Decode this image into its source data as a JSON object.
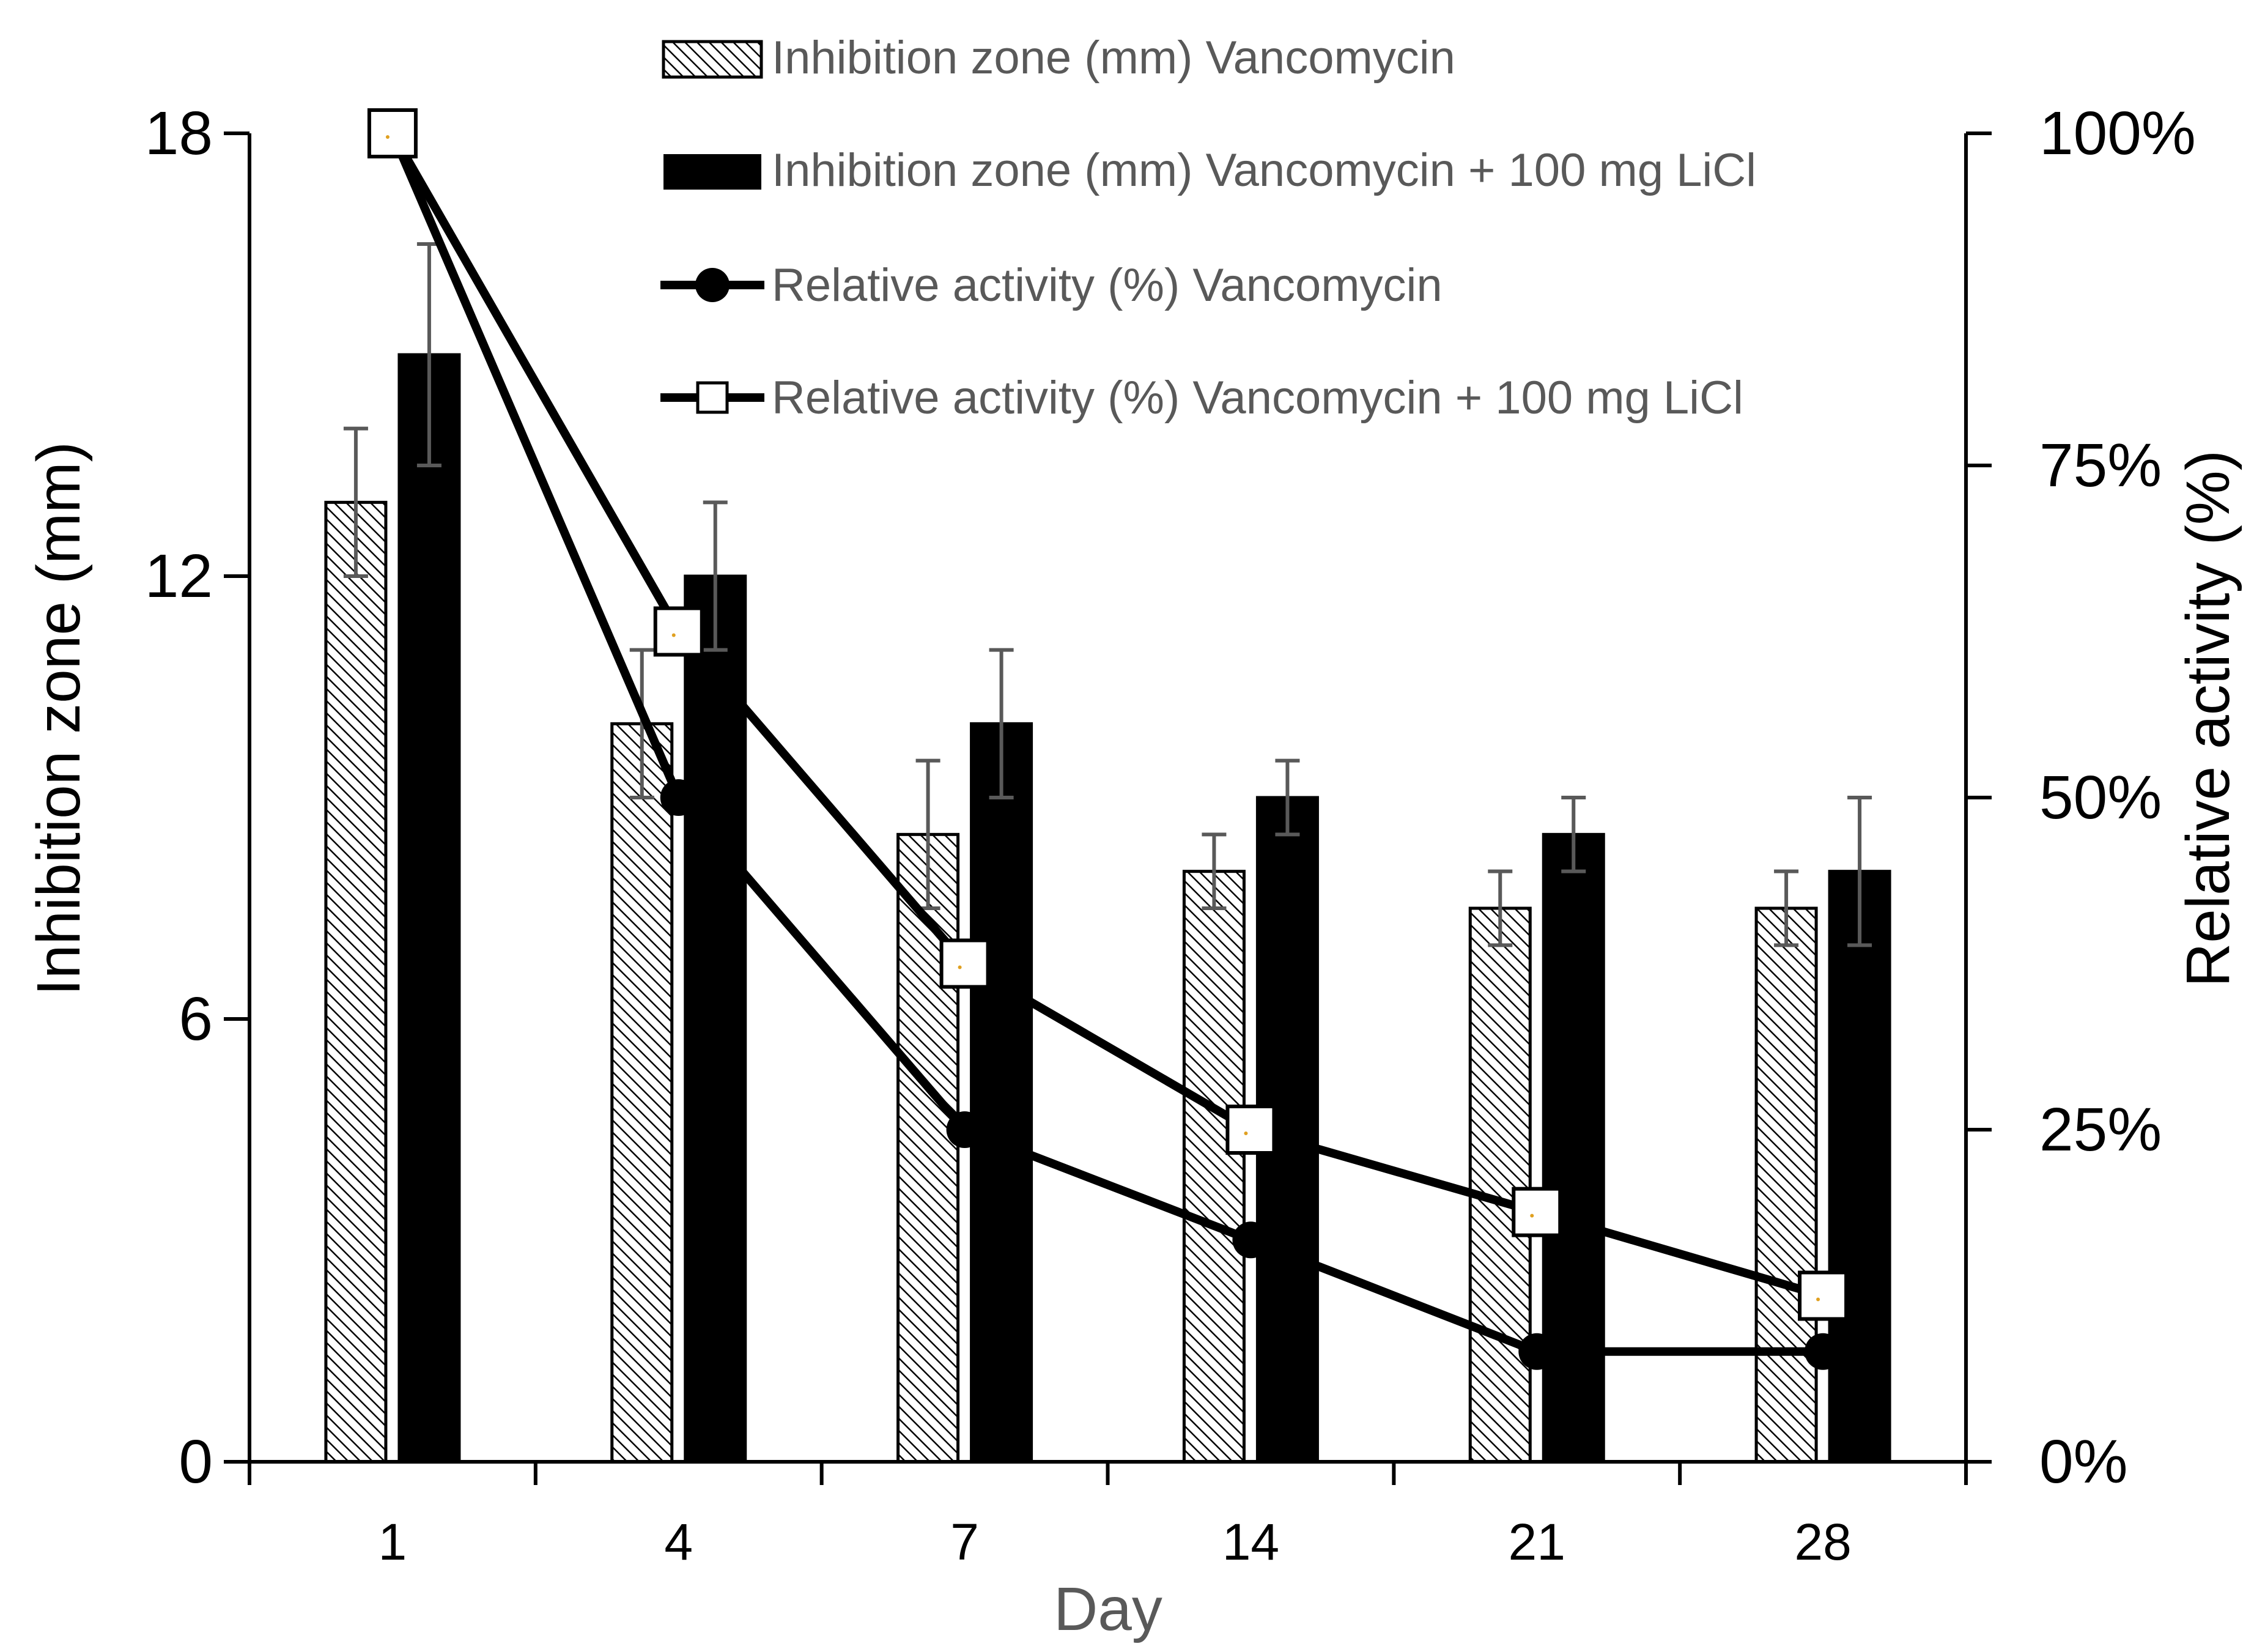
{
  "chart_data": {
    "type": "bar",
    "categories": [
      "1",
      "4",
      "7",
      "14",
      "21",
      "28"
    ],
    "xlabel": "Day",
    "ylabel": "Inhibition zone (mm)",
    "y2label": "Relative activity (%)",
    "ylim": [
      0,
      18
    ],
    "yticks": [
      "0",
      "6",
      "12",
      "18"
    ],
    "y2lim": [
      0,
      100
    ],
    "y2ticks": [
      "0%",
      "25%",
      "50%",
      "75%",
      "100%"
    ],
    "legend_position": "top",
    "bar_series": [
      {
        "name": "Inhibition zone (mm) Vancomycin",
        "values": [
          13,
          10,
          8.5,
          8,
          7.5,
          7.5
        ],
        "errors": [
          1,
          1,
          1,
          0.5,
          0.5,
          0.5
        ],
        "fill": "hatched"
      },
      {
        "name": "Inhibition zone (mm) Vancomycin + 100 mg LiCl",
        "values": [
          15,
          12,
          10,
          9,
          8.5,
          8
        ],
        "errors": [
          1.5,
          1,
          1,
          0.5,
          0.5,
          1
        ],
        "fill": "#000000"
      }
    ],
    "line_series": [
      {
        "name": "Relative activity (%) Vancomycin",
        "values": [
          100,
          50,
          25,
          16.7,
          8.3,
          8.3
        ],
        "marker": "circle"
      },
      {
        "name": "Relative activity (%) Vancomycin + 100 mg LiCl",
        "values": [
          100,
          62.5,
          37.5,
          25,
          18.8,
          12.5
        ],
        "marker": "square"
      }
    ]
  },
  "colors": {
    "axis": "#000000",
    "text": "#000000",
    "secondary_text": "#595959",
    "error_bar": "#595959",
    "marker_dot": "#e0a020"
  }
}
